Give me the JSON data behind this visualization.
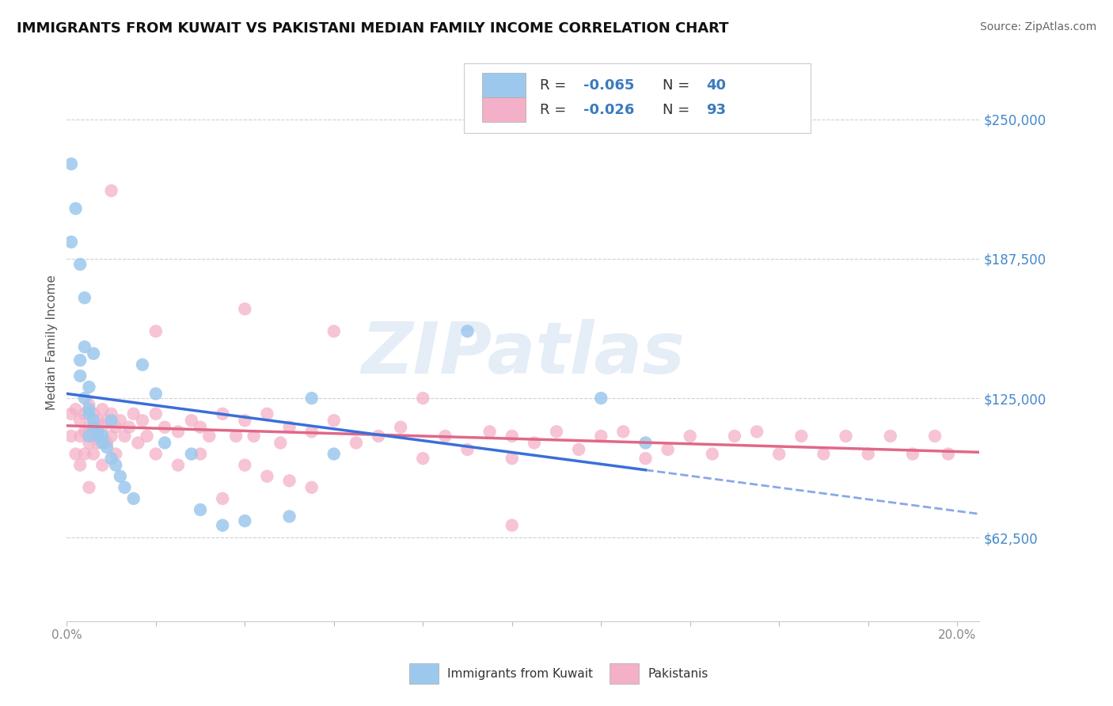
{
  "title": "IMMIGRANTS FROM KUWAIT VS PAKISTANI MEDIAN FAMILY INCOME CORRELATION CHART",
  "source_text": "Source: ZipAtlas.com",
  "ylabel": "Median Family Income",
  "xlim": [
    0.0,
    0.205
  ],
  "ylim": [
    25000,
    275000
  ],
  "ytick_vals": [
    62500,
    125000,
    187500,
    250000
  ],
  "ytick_labels": [
    "$62,500",
    "$125,000",
    "$187,500",
    "$250,000"
  ],
  "xtick_vals": [
    0.0,
    0.02,
    0.04,
    0.06,
    0.08,
    0.1,
    0.12,
    0.14,
    0.16,
    0.18,
    0.2
  ],
  "xtick_labels": [
    "0.0%",
    "",
    "",
    "",
    "",
    "",
    "",
    "",
    "",
    "",
    "20.0%"
  ],
  "bg_color": "#ffffff",
  "grid_color": "#d0d0d0",
  "kuwait_dot_color": "#9dc8ed",
  "pakistan_dot_color": "#f4b0c8",
  "kuwait_line_color": "#3a6fd8",
  "pakistan_line_color": "#e06888",
  "axis_label_color": "#555555",
  "ytick_color": "#4488cc",
  "xtick_color": "#888888",
  "r1": "-0.065",
  "n1": "40",
  "r2": "-0.026",
  "n2": "93",
  "watermark": "ZIPatlas",
  "kuwait_x": [
    0.001,
    0.001,
    0.002,
    0.003,
    0.003,
    0.003,
    0.004,
    0.004,
    0.004,
    0.005,
    0.005,
    0.005,
    0.005,
    0.006,
    0.006,
    0.006,
    0.007,
    0.007,
    0.008,
    0.008,
    0.009,
    0.01,
    0.01,
    0.011,
    0.012,
    0.013,
    0.015,
    0.017,
    0.02,
    0.022,
    0.028,
    0.03,
    0.035,
    0.04,
    0.05,
    0.055,
    0.06,
    0.09,
    0.12,
    0.13
  ],
  "kuwait_y": [
    230000,
    195000,
    210000,
    185000,
    142000,
    135000,
    170000,
    148000,
    125000,
    130000,
    120000,
    118000,
    108000,
    115000,
    112000,
    145000,
    110000,
    108000,
    108000,
    105000,
    103000,
    115000,
    98000,
    95000,
    90000,
    85000,
    80000,
    140000,
    127000,
    105000,
    100000,
    75000,
    68000,
    70000,
    72000,
    125000,
    100000,
    155000,
    125000,
    105000
  ],
  "pak_x": [
    0.001,
    0.001,
    0.002,
    0.002,
    0.003,
    0.003,
    0.003,
    0.004,
    0.004,
    0.004,
    0.005,
    0.005,
    0.005,
    0.005,
    0.006,
    0.006,
    0.006,
    0.007,
    0.007,
    0.008,
    0.008,
    0.008,
    0.009,
    0.009,
    0.01,
    0.01,
    0.011,
    0.011,
    0.012,
    0.013,
    0.014,
    0.015,
    0.016,
    0.017,
    0.018,
    0.02,
    0.02,
    0.022,
    0.025,
    0.025,
    0.028,
    0.03,
    0.03,
    0.032,
    0.035,
    0.035,
    0.038,
    0.04,
    0.04,
    0.042,
    0.045,
    0.045,
    0.048,
    0.05,
    0.05,
    0.055,
    0.055,
    0.06,
    0.065,
    0.07,
    0.075,
    0.08,
    0.085,
    0.09,
    0.095,
    0.1,
    0.1,
    0.105,
    0.11,
    0.115,
    0.12,
    0.125,
    0.13,
    0.135,
    0.14,
    0.145,
    0.15,
    0.155,
    0.16,
    0.165,
    0.17,
    0.175,
    0.18,
    0.185,
    0.19,
    0.195,
    0.198,
    0.01,
    0.02,
    0.04,
    0.06,
    0.08,
    0.1
  ],
  "pak_y": [
    118000,
    108000,
    120000,
    100000,
    115000,
    108000,
    95000,
    118000,
    110000,
    100000,
    122000,
    112000,
    105000,
    85000,
    118000,
    108000,
    100000,
    115000,
    105000,
    120000,
    112000,
    95000,
    115000,
    105000,
    118000,
    108000,
    112000,
    100000,
    115000,
    108000,
    112000,
    118000,
    105000,
    115000,
    108000,
    118000,
    100000,
    112000,
    110000,
    95000,
    115000,
    112000,
    100000,
    108000,
    118000,
    80000,
    108000,
    115000,
    95000,
    108000,
    118000,
    90000,
    105000,
    112000,
    88000,
    110000,
    85000,
    115000,
    105000,
    108000,
    112000,
    98000,
    108000,
    102000,
    110000,
    98000,
    108000,
    105000,
    110000,
    102000,
    108000,
    110000,
    98000,
    102000,
    108000,
    100000,
    108000,
    110000,
    100000,
    108000,
    100000,
    108000,
    100000,
    108000,
    100000,
    108000,
    100000,
    218000,
    155000,
    165000,
    155000,
    125000,
    68000
  ]
}
